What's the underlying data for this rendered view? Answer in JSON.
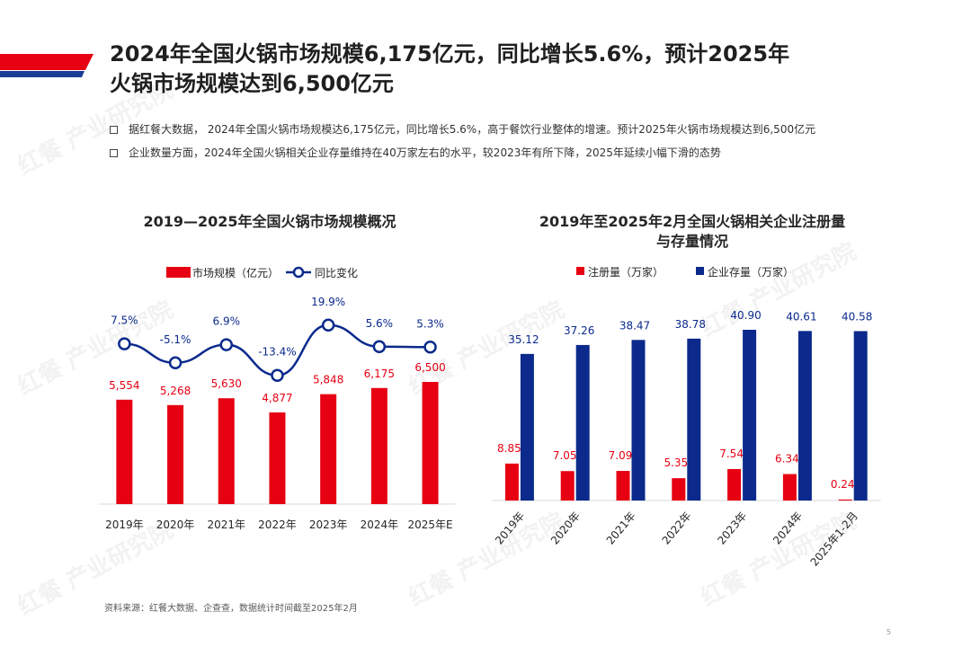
{
  "page": {
    "title": "2024年全国火锅市场规模6,175亿元，同比增长5.6%，预计2025年\n火锅市场规模达到6,500亿元",
    "bullets": [
      "据红餐大数据， 2024年全国火锅市场规模达6,175亿元，同比增长5.6%，高于餐饮行业整体的增速。预计2025年火锅市场规模达到6,500亿元",
      "企业数量方面，2024年全国火锅相关企业存量维持在40万家左右的水平，较2023年有所下降，2025年延续小幅下滑的态势"
    ],
    "source": "资料来源：红餐大数据、企查查，数据统计时间截至2025年2月",
    "page_number": "5",
    "watermark_text": "红餐 产业研究院",
    "colors": {
      "red": "#e60012",
      "blue": "#0b2a8c",
      "stripe_blue": "#1c3d96"
    }
  },
  "chart_data": [
    {
      "type": "bar",
      "title": "2019—2025年全国火锅市场规模概况",
      "categories": [
        "2019年",
        "2020年",
        "2021年",
        "2022年",
        "2023年",
        "2024年",
        "2025年E"
      ],
      "series": [
        {
          "name": "市场规模（亿元）",
          "type": "bar",
          "color": "#e60012",
          "values": [
            5554,
            5268,
            5630,
            4877,
            5848,
            6175,
            6500
          ],
          "labels": [
            "5,554",
            "5,268",
            "5,630",
            "4,877",
            "5,848",
            "6,175",
            "6,500"
          ]
        },
        {
          "name": "同比变化",
          "type": "line",
          "color": "#0b2a8c",
          "values": [
            7.5,
            -5.1,
            6.9,
            -13.4,
            19.9,
            5.6,
            5.3
          ],
          "labels": [
            "7.5%",
            "-5.1%",
            "6.9%",
            "-13.4%",
            "19.9%",
            "5.6%",
            "5.3%"
          ]
        }
      ],
      "legend": "top",
      "grid": false
    },
    {
      "type": "bar",
      "title": "2019年至2025年2月全国火锅相关企业注册量\n与存量情况",
      "categories": [
        "2019年",
        "2020年",
        "2021年",
        "2022年",
        "2023年",
        "2024年",
        "2025年1-2月"
      ],
      "series": [
        {
          "name": "注册量（万家）",
          "color": "#e60012",
          "values": [
            8.85,
            7.05,
            7.09,
            5.35,
            7.54,
            6.34,
            0.24
          ],
          "labels": [
            "8.85",
            "7.05",
            "7.09",
            "5.35",
            "7.54",
            "6.34",
            "0.24"
          ]
        },
        {
          "name": "企业存量（万家）",
          "color": "#0b2a8c",
          "values": [
            35.12,
            37.26,
            38.47,
            38.78,
            40.9,
            40.61,
            40.58
          ],
          "labels": [
            "35.12",
            "37.26",
            "38.47",
            "38.78",
            "40.90",
            "40.61",
            "40.58"
          ]
        }
      ],
      "legend": "top",
      "grid": false
    }
  ]
}
